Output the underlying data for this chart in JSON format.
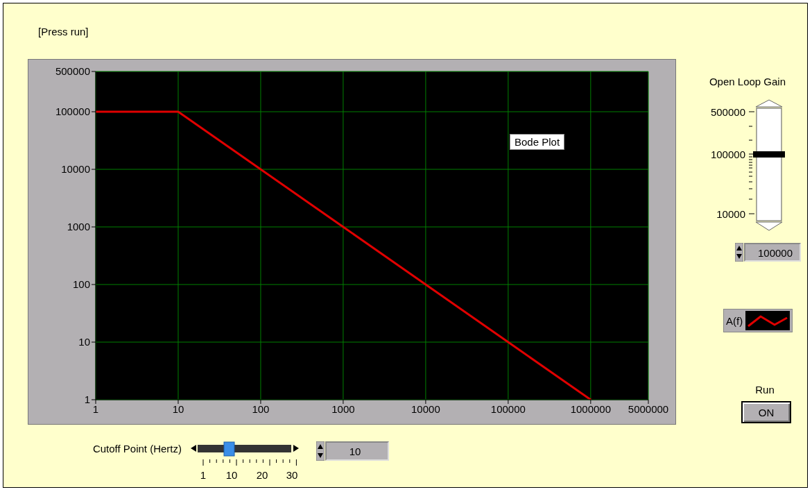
{
  "chart_data": {
    "type": "line",
    "title": "Bode Plot",
    "x": [
      1,
      10,
      100,
      1000,
      10000,
      100000,
      1000000
    ],
    "series": [
      {
        "name": "A(f)",
        "color": "#e00000",
        "values": [
          100000,
          100000,
          10000,
          1000,
          100,
          10,
          1
        ]
      }
    ],
    "log": "xy",
    "xlim": [
      1,
      5000000
    ],
    "xticks": [
      1,
      10,
      100,
      1000,
      10000,
      100000,
      1000000,
      5000000
    ],
    "ylim": [
      1,
      500000
    ],
    "yticks": [
      1,
      10,
      100,
      1000,
      10000,
      100000,
      500000
    ],
    "grid": true,
    "legend": "right",
    "marker": "none",
    "line_style": "solid",
    "annotations": [
      "[Press run]",
      "Open Loop Gain",
      "500000",
      "100000",
      "10000",
      "100000",
      "Run",
      "ON",
      "Cutoff Point (Hertz)",
      "1",
      "10",
      "20",
      "30",
      "10"
    ]
  }
}
